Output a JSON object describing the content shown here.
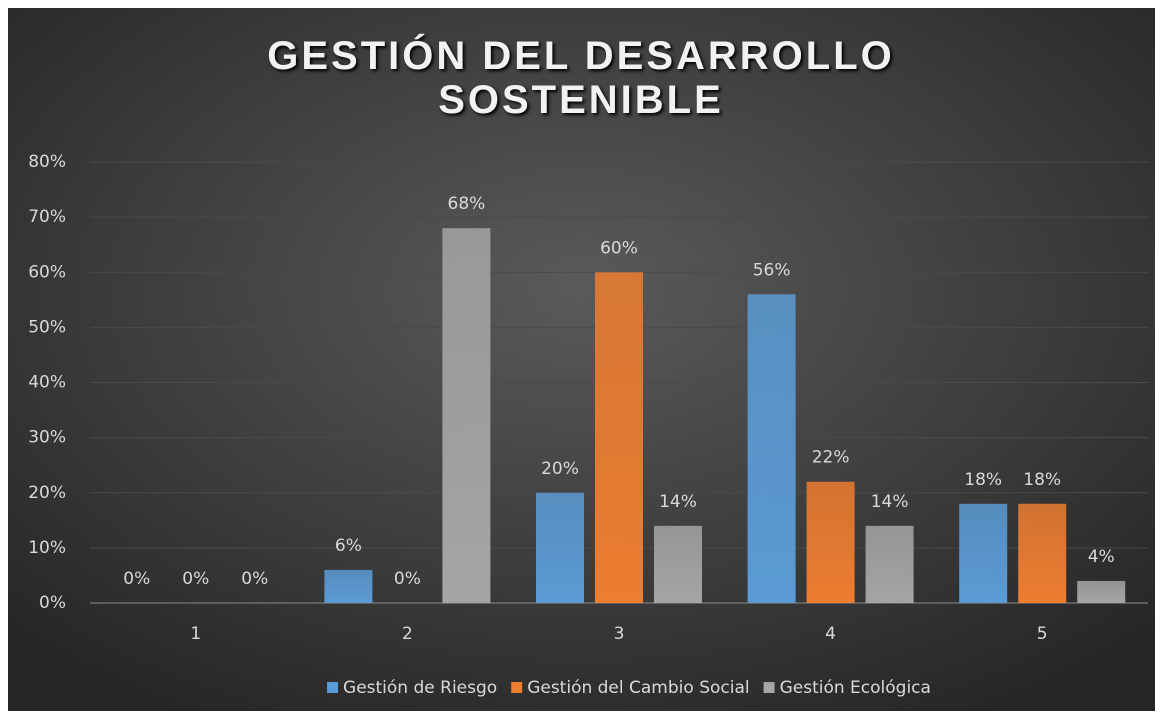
{
  "chart_data": {
    "type": "bar",
    "title": "GESTIÓN DEL DESARROLLO SOSTENIBLE",
    "categories": [
      "1",
      "2",
      "3",
      "4",
      "5"
    ],
    "series": [
      {
        "name": "Gestión de Riesgo",
        "color": "#5b9bd5",
        "values": [
          0,
          6,
          20,
          56,
          18
        ],
        "value_labels": [
          "0%",
          "6%",
          "20%",
          "56%",
          "18%"
        ]
      },
      {
        "name": "Gestión del Cambio Social",
        "color": "#ed7d31",
        "values": [
          0,
          0,
          60,
          22,
          18
        ],
        "value_labels": [
          "0%",
          "0%",
          "60%",
          "22%",
          "18%"
        ]
      },
      {
        "name": "Gestión Ecológica",
        "color": "#a5a5a5",
        "values": [
          0,
          68,
          14,
          14,
          4
        ],
        "value_labels": [
          "0%",
          "68%",
          "14%",
          "14%",
          "4%"
        ]
      }
    ],
    "ylim": [
      0,
      80
    ],
    "yticks": [
      {
        "value": 0,
        "label": "0%"
      },
      {
        "value": 10,
        "label": "10%"
      },
      {
        "value": 20,
        "label": "20%"
      },
      {
        "value": 30,
        "label": "30%"
      },
      {
        "value": 40,
        "label": "40%"
      },
      {
        "value": 50,
        "label": "50%"
      },
      {
        "value": 60,
        "label": "60%"
      },
      {
        "value": 70,
        "label": "70%"
      },
      {
        "value": 80,
        "label": "80%"
      }
    ],
    "grid": true,
    "legend": "bottom"
  }
}
